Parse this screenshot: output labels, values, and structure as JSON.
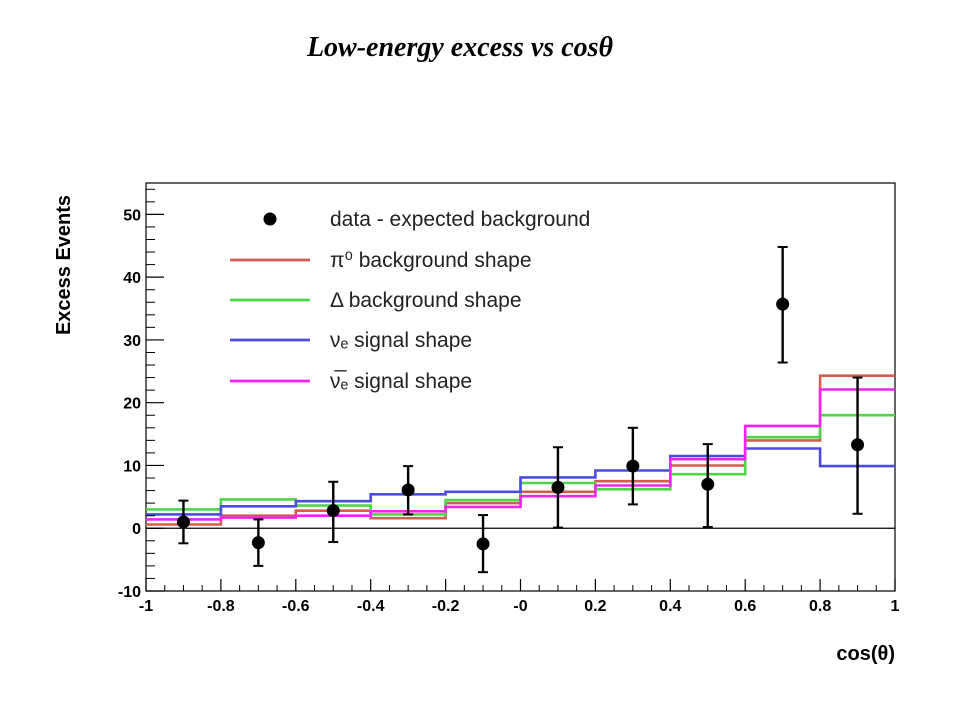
{
  "page": {
    "title": "Low-energy excess vs cosθ"
  },
  "chart_data": {
    "type": "scatter",
    "xlabel": "cos(θ)",
    "ylabel": "Excess Events",
    "xlim": [
      -1,
      1
    ],
    "ylim": [
      -10,
      55
    ],
    "x_ticks": [
      "-1",
      "-0.8",
      "-0.6",
      "-0.4",
      "-0.2",
      "-0",
      "0.2",
      "0.4",
      "0.6",
      "0.8",
      "1"
    ],
    "y_ticks": [
      "-10",
      "0",
      "10",
      "20",
      "30",
      "40",
      "50"
    ],
    "bin_edges": [
      -1,
      -0.8,
      -0.6,
      -0.4,
      -0.2,
      0,
      0.2,
      0.4,
      0.6,
      0.8,
      1
    ],
    "zero_line": true,
    "legend_position": "top-left",
    "data_points": {
      "name": "data - expected background",
      "color": "#000000",
      "x": [
        -0.9,
        -0.7,
        -0.5,
        -0.3,
        -0.1,
        0.1,
        0.3,
        0.5,
        0.7,
        0.9
      ],
      "y": [
        1.0,
        -2.3,
        2.8,
        6.1,
        -2.5,
        6.5,
        9.9,
        7.0,
        35.7,
        13.3
      ],
      "err_low": [
        3.4,
        3.7,
        5.0,
        3.9,
        4.5,
        6.4,
        6.1,
        6.8,
        9.3,
        11.0
      ],
      "err_high": [
        3.4,
        3.7,
        4.6,
        3.8,
        4.6,
        6.4,
        6.1,
        6.4,
        9.1,
        10.7
      ]
    },
    "series": [
      {
        "name": "π⁰ background shape",
        "color": "#d15d4e",
        "values": [
          0.6,
          2.0,
          2.8,
          1.6,
          4.0,
          5.8,
          7.5,
          10.0,
          14.0,
          24.3
        ]
      },
      {
        "name": "Δ background shape",
        "color": "#4cd64a",
        "values": [
          3.0,
          4.6,
          3.6,
          2.2,
          4.5,
          7.2,
          6.2,
          8.6,
          14.5,
          18.0
        ]
      },
      {
        "name": "νₑ signal shape",
        "color": "#4c4ce3",
        "values": [
          2.2,
          3.5,
          4.3,
          5.4,
          5.8,
          8.1,
          9.2,
          11.5,
          12.7,
          9.9
        ]
      },
      {
        "name": "ν̅ₑ signal shape",
        "color": "#f521f5",
        "values": [
          1.4,
          1.7,
          2.0,
          2.7,
          3.4,
          5.1,
          6.8,
          11.0,
          16.3,
          22.1
        ]
      }
    ]
  }
}
